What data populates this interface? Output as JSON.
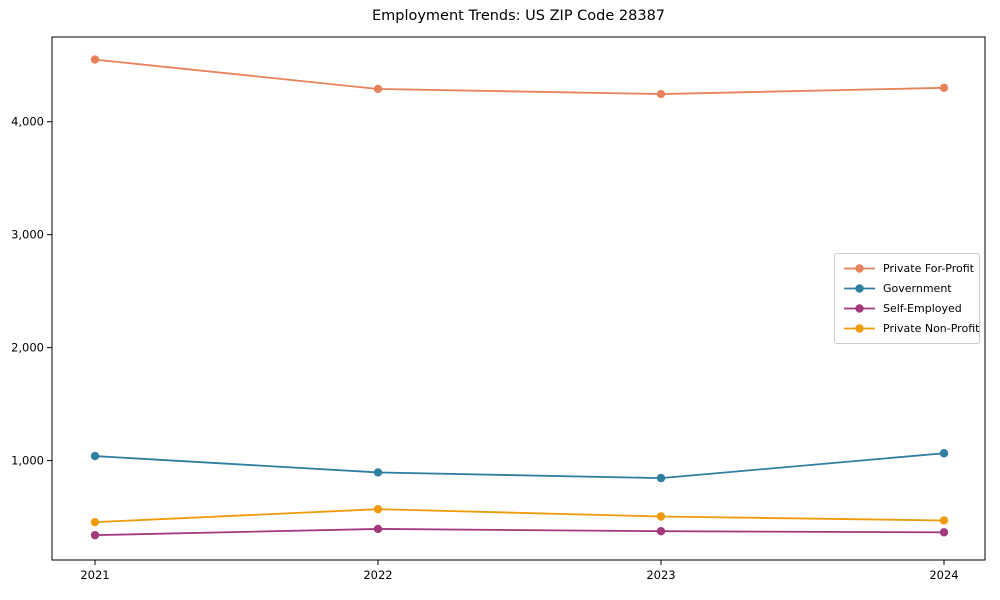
{
  "figure": {
    "background_color": "#ffffff"
  },
  "chart_data": {
    "type": "line",
    "title": "Employment Trends: US ZIP Code 28387",
    "categories": [
      "2021",
      "2022",
      "2023",
      "2024"
    ],
    "series": [
      {
        "name": "Private For-Profit",
        "color": "#e8825a",
        "values": [
          4550,
          4290,
          4245,
          4300
        ]
      },
      {
        "name": "Government",
        "color": "#2f7fa0",
        "values": [
          1040,
          895,
          845,
          1065
        ]
      },
      {
        "name": "Self-Employed",
        "color": "#a23a7c",
        "values": [
          340,
          395,
          375,
          365
        ]
      },
      {
        "name": "Private Non-Profit",
        "color": "#f09b0d",
        "values": [
          455,
          570,
          505,
          470
        ]
      }
    ],
    "xlabel": "",
    "ylabel": "",
    "y_ticks": [
      1000,
      2000,
      3000,
      4000
    ],
    "y_tick_labels": [
      "1,000",
      "2,000",
      "3,000",
      "4,000"
    ],
    "ylim": [
      120,
      4750
    ],
    "grid": false,
    "marker": "circle",
    "legend": {
      "position": "center-right",
      "items": [
        "Private For-Profit",
        "Government",
        "Self-Employed",
        "Private Non-Profit"
      ]
    }
  }
}
